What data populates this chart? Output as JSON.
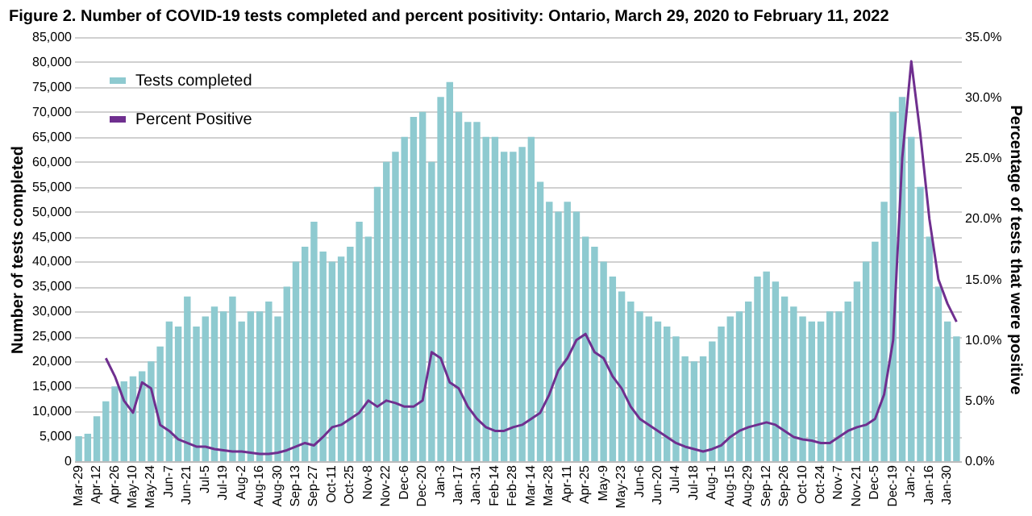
{
  "chart_data": {
    "type": "bar",
    "title": "Figure 2. Number of COVID-19 tests completed and percent positivity: Ontario, March 29, 2020 to February 11, 2022",
    "ylabel": "Number of tests completed",
    "y2label": "Percentage of tests that were positive",
    "categories": [
      "Mar-29",
      null,
      "Apr-12",
      null,
      "Apr-26",
      null,
      "May-10",
      null,
      "May-24",
      null,
      "Jun-7",
      null,
      "Jun-21",
      null,
      "Jul-5",
      null,
      "Jul-19",
      null,
      "Aug-2",
      null,
      "Aug-16",
      null,
      "Aug-30",
      null,
      "Sep-13",
      null,
      "Sep-27",
      null,
      "Oct-11",
      null,
      "Oct-25",
      null,
      "Nov-8",
      null,
      "Nov-22",
      null,
      "Dec-6",
      null,
      "Dec-20",
      null,
      "Jan-3",
      null,
      "Jan-17",
      null,
      "Jan-31",
      null,
      "Feb-14",
      null,
      "Feb-28",
      null,
      "Mar-14",
      null,
      "Mar-28",
      null,
      "Apr-11",
      null,
      "Apr-25",
      null,
      "May-9",
      null,
      "May-23",
      null,
      "Jun-6",
      null,
      "Jun-20",
      null,
      "Jul-4",
      null,
      "Jul-18",
      null,
      "Aug-1",
      null,
      "Aug-15",
      null,
      "Aug-29",
      null,
      "Sep-12",
      null,
      "Sep-26",
      null,
      "Oct-10",
      null,
      "Oct-24",
      null,
      "Nov-7",
      null,
      "Nov-21",
      null,
      "Dec-5",
      null,
      "Dec-19",
      null,
      "Jan-2",
      null,
      "Jan-16",
      null,
      "Jan-30",
      null
    ],
    "series": [
      {
        "name": "Tests completed",
        "color": "#8ecad0",
        "values": [
          5000,
          5500,
          9000,
          12000,
          15000,
          16000,
          17000,
          18000,
          20000,
          23000,
          28000,
          27000,
          33000,
          27000,
          29000,
          31000,
          30000,
          33000,
          28000,
          30000,
          30000,
          32000,
          29000,
          35000,
          40000,
          43000,
          48000,
          42000,
          40000,
          41000,
          43000,
          48000,
          45000,
          55000,
          60000,
          62000,
          65000,
          69000,
          70000,
          60000,
          73000,
          76000,
          70000,
          68000,
          68000,
          65000,
          65000,
          62000,
          62000,
          63000,
          65000,
          56000,
          52000,
          50000,
          52000,
          50000,
          45000,
          43000,
          40000,
          37000,
          34000,
          32000,
          30000,
          29000,
          28000,
          27000,
          25000,
          21000,
          20000,
          21000,
          24000,
          27000,
          29000,
          30000,
          32000,
          37000,
          38000,
          36000,
          33000,
          31000,
          29000,
          28000,
          28000,
          30000,
          30000,
          32000,
          36000,
          40000,
          44000,
          52000,
          70000,
          73000,
          65000,
          55000,
          45000,
          35000,
          28000,
          25000
        ]
      },
      {
        "name": "Percent Positive",
        "type": "line",
        "axis": "y2",
        "color": "#6f2f8f",
        "values": [
          null,
          null,
          null,
          8.5,
          7,
          5,
          4,
          6.5,
          6,
          3,
          2.5,
          1.8,
          1.5,
          1.2,
          1.2,
          1.0,
          0.9,
          0.8,
          0.8,
          0.7,
          0.6,
          0.6,
          0.7,
          0.9,
          1.2,
          1.5,
          1.3,
          2.0,
          2.8,
          3.0,
          3.5,
          4.0,
          5.0,
          4.5,
          5.0,
          4.8,
          4.5,
          4.5,
          5.0,
          9.0,
          8.5,
          6.5,
          6.0,
          4.5,
          3.5,
          2.8,
          2.5,
          2.5,
          2.8,
          3.0,
          3.5,
          4.0,
          5.5,
          7.5,
          8.5,
          10.0,
          10.5,
          9.0,
          8.5,
          7.0,
          6.0,
          4.5,
          3.5,
          3.0,
          2.5,
          2.0,
          1.5,
          1.2,
          1.0,
          0.8,
          1.0,
          1.3,
          2.0,
          2.5,
          2.8,
          3.0,
          3.2,
          3.0,
          2.5,
          2.0,
          1.8,
          1.7,
          1.5,
          1.5,
          2.0,
          2.5,
          2.8,
          3.0,
          3.5,
          5.5,
          10.0,
          25.0,
          33.0,
          27.0,
          20.0,
          15.0,
          13.0,
          11.5
        ]
      }
    ],
    "ylim": [
      0,
      85000
    ],
    "yticks": [
      0,
      {
        "value": 5000,
        "label": "5,000"
      },
      {
        "value": 10000,
        "label": "10,000"
      },
      {
        "value": 15000,
        "label": "15,000"
      },
      {
        "value": 20000,
        "label": "20,000"
      },
      {
        "value": 25000,
        "label": "25,000"
      },
      {
        "value": 30000,
        "label": "30,000"
      },
      {
        "value": 35000,
        "label": "35,000"
      },
      {
        "value": 40000,
        "label": "40,000"
      },
      {
        "value": 45000,
        "label": "45,000"
      },
      {
        "value": 50000,
        "label": "50,000"
      },
      {
        "value": 55000,
        "label": "55,000"
      },
      {
        "value": 60000,
        "label": "60,000"
      },
      {
        "value": 65000,
        "label": "65,000"
      },
      {
        "value": 70000,
        "label": "70,000"
      },
      {
        "value": 75000,
        "label": "75,000"
      },
      {
        "value": 80000,
        "label": "80,000"
      },
      {
        "value": 85000,
        "label": "85,000"
      }
    ],
    "y2lim": [
      0,
      35
    ],
    "y2ticks": [
      {
        "value": 0,
        "label": "0.0%"
      },
      {
        "value": 5,
        "label": "5.0%"
      },
      {
        "value": 10,
        "label": "10.0%"
      },
      {
        "value": 15,
        "label": "15.0%"
      },
      {
        "value": 20,
        "label": "20.0%"
      },
      {
        "value": 25,
        "label": "25.0%"
      },
      {
        "value": 30,
        "label": "30.0%"
      },
      {
        "value": 35,
        "label": "35.0%"
      }
    ],
    "grid": "y",
    "legend": "top left"
  }
}
